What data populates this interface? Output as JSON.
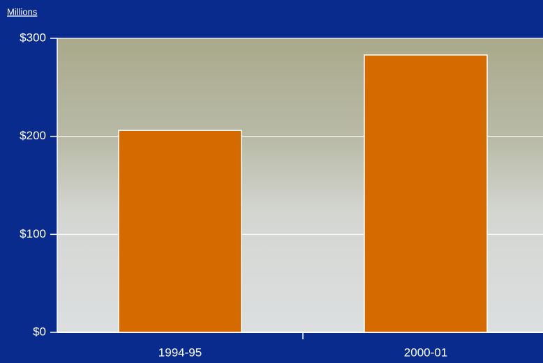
{
  "chart_data": {
    "type": "bar",
    "y_axis_label": "Millions",
    "categories": [
      "1994-95",
      "2000-01"
    ],
    "values": [
      206,
      283
    ],
    "color": "#d46a00",
    "ylim": [
      0,
      300
    ],
    "yticks": [
      {
        "value": 0,
        "label": "$0"
      },
      {
        "value": 100,
        "label": "$100"
      },
      {
        "value": 200,
        "label": "$200"
      },
      {
        "value": 300,
        "label": "$300"
      }
    ],
    "grid": true
  }
}
